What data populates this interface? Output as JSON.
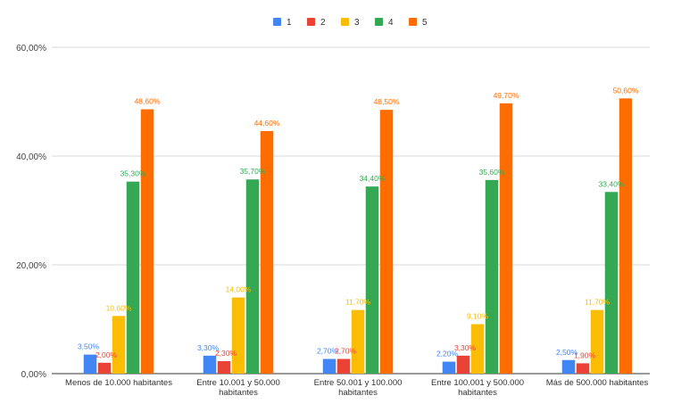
{
  "chart_data": {
    "type": "bar",
    "title": "",
    "xlabel": "",
    "ylabel": "",
    "ylim": [
      0,
      60
    ],
    "grid": true,
    "legend_position": "top-center",
    "y_ticks": [
      {
        "value": 0,
        "label": "0,00%"
      },
      {
        "value": 20,
        "label": "20,00%"
      },
      {
        "value": 40,
        "label": "40,00%"
      },
      {
        "value": 60,
        "label": "60,00%"
      }
    ],
    "categories": [
      [
        "Menos de 10.000 habitantes"
      ],
      [
        "Entre 10.001 y 50.000",
        "habitantes"
      ],
      [
        "Entre 50.001 y 100.000",
        "habitantes"
      ],
      [
        "Entre 100.001 y 500.000",
        "habitantes"
      ],
      [
        "Más de 500.000 habitantes"
      ]
    ],
    "series": [
      {
        "name": "1",
        "color": "#4285f4",
        "values": [
          3.5,
          3.3,
          2.7,
          2.2,
          2.5
        ],
        "labels": [
          "3,50%",
          "3,30%",
          "2,70%",
          "2,20%",
          "2,50%"
        ]
      },
      {
        "name": "2",
        "color": "#ea4335",
        "values": [
          2.0,
          2.3,
          2.7,
          3.3,
          1.9
        ],
        "labels": [
          "2,00%",
          "2,30%",
          "2,70%",
          "3,30%",
          "1,90%"
        ]
      },
      {
        "name": "3",
        "color": "#fbbc04",
        "values": [
          10.6,
          14.0,
          11.7,
          9.1,
          11.7
        ],
        "labels": [
          "10,60%",
          "14,00%",
          "11,70%",
          "9,10%",
          "11,70%"
        ]
      },
      {
        "name": "4",
        "color": "#34a853",
        "values": [
          35.3,
          35.7,
          34.4,
          35.6,
          33.4
        ],
        "labels": [
          "35,30%",
          "35,70%",
          "34,40%",
          "35,60%",
          "33,40%"
        ]
      },
      {
        "name": "5",
        "color": "#ff6d01",
        "values": [
          48.6,
          44.6,
          48.5,
          49.7,
          50.6
        ],
        "labels": [
          "48,60%",
          "44,60%",
          "48,50%",
          "49,70%",
          "50,60%"
        ]
      }
    ]
  }
}
